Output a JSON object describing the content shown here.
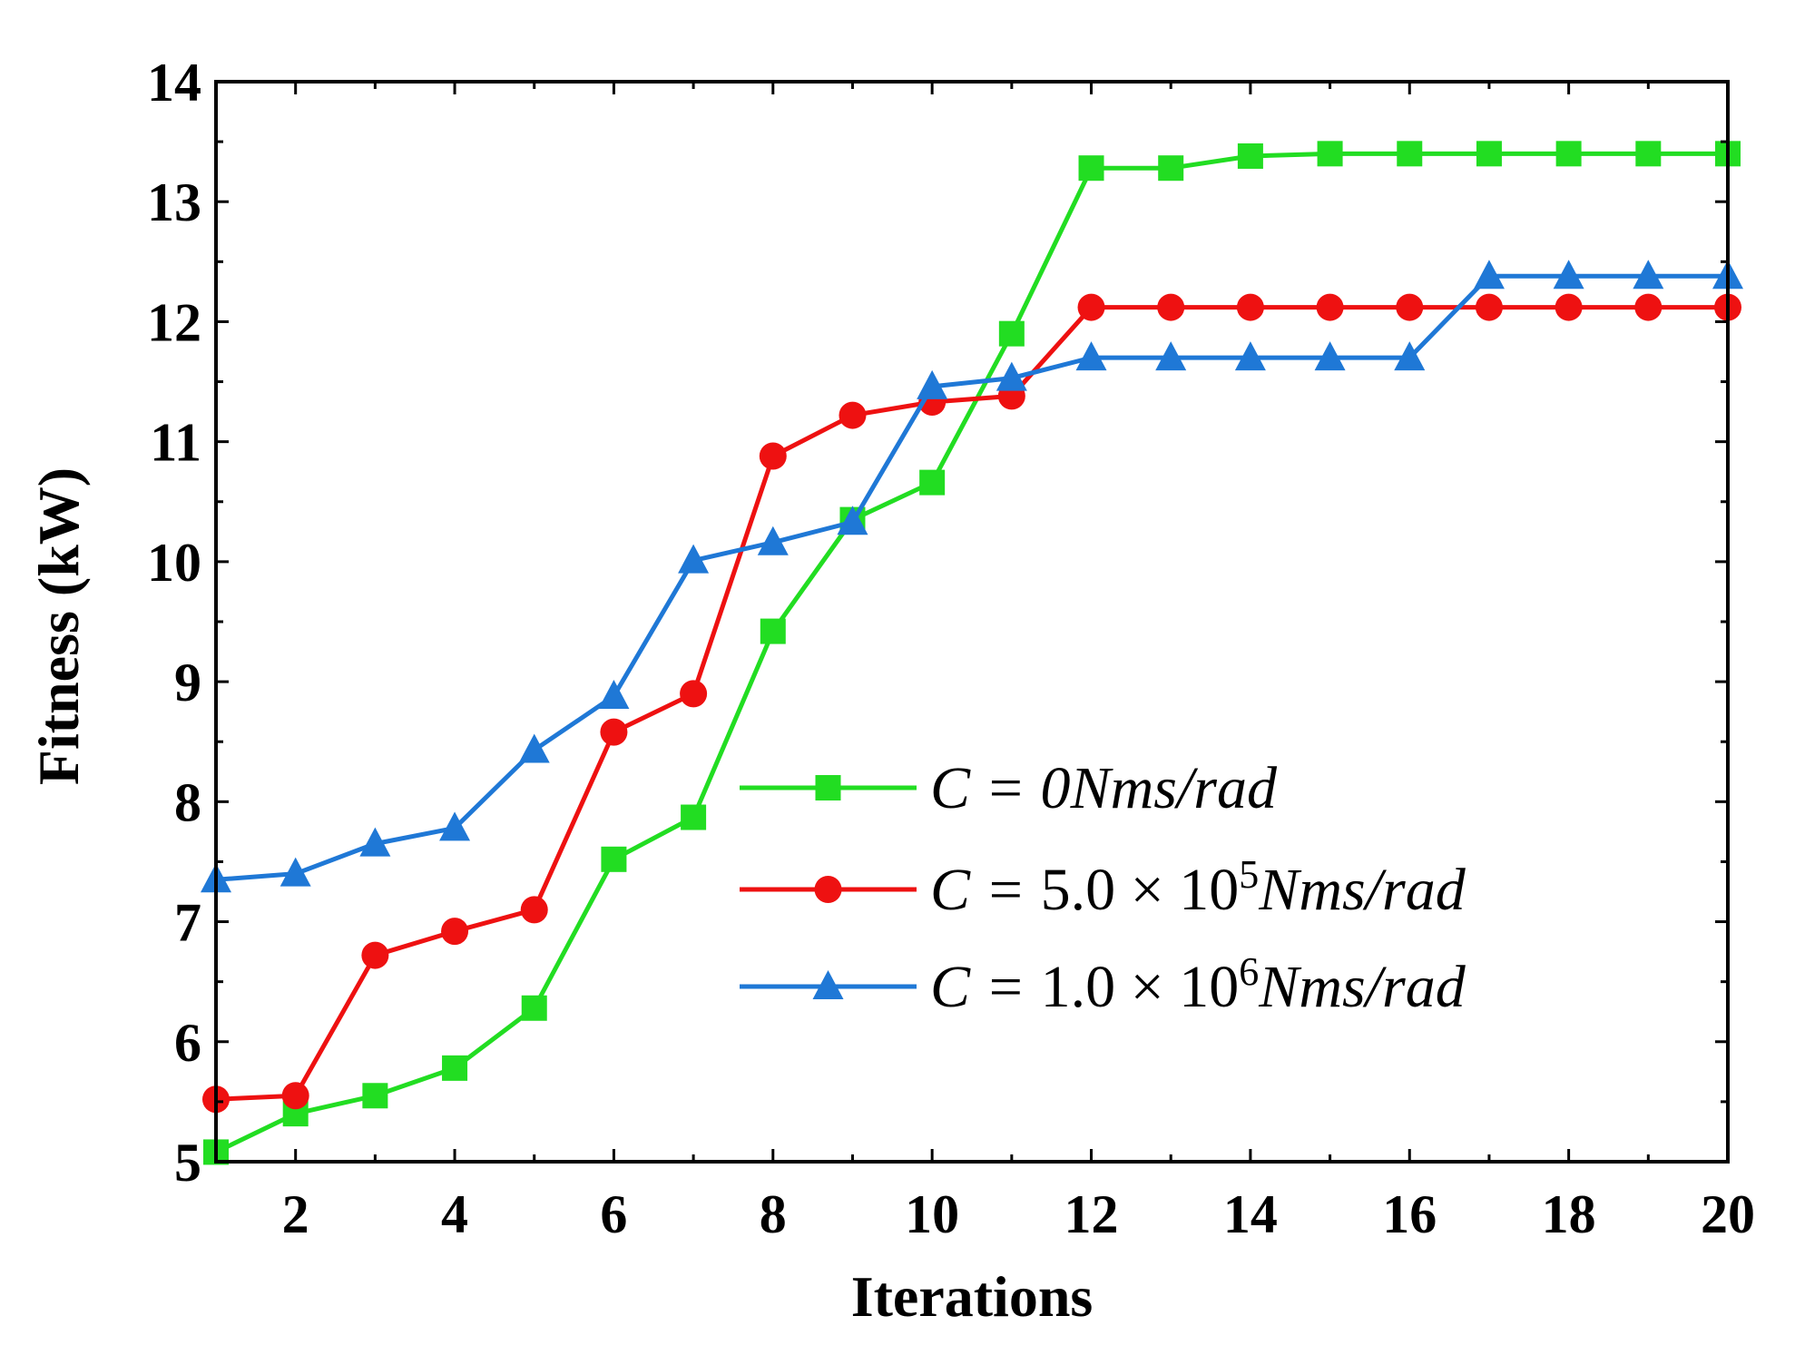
{
  "chart_data": {
    "type": "line",
    "title": "",
    "xlabel": "Iterations",
    "ylabel": "Fitness (kW)",
    "xlim": [
      1,
      20
    ],
    "ylim": [
      5,
      14
    ],
    "xticks": [
      2,
      4,
      6,
      8,
      10,
      12,
      14,
      16,
      18,
      20
    ],
    "yticks": [
      5,
      6,
      7,
      8,
      9,
      10,
      11,
      12,
      13,
      14
    ],
    "grid": false,
    "legend_position": "center-right",
    "x": [
      1,
      2,
      3,
      4,
      5,
      6,
      7,
      8,
      9,
      10,
      11,
      12,
      13,
      14,
      15,
      16,
      17,
      18,
      19,
      20
    ],
    "series": [
      {
        "name": "C = 0Nms/rad",
        "legend_parts": {
          "prefix": "C = 0",
          "mantissa": "",
          "exponent": "",
          "unit": "Nms/rad"
        },
        "color": "#22dd22",
        "marker": "square",
        "values": [
          5.08,
          5.4,
          5.55,
          5.78,
          6.28,
          7.52,
          7.87,
          9.42,
          10.35,
          10.66,
          11.9,
          13.28,
          13.28,
          13.38,
          13.4,
          13.4,
          13.4,
          13.4,
          13.4,
          13.4
        ]
      },
      {
        "name": "C = 5.0 × 10^5 Nms/rad",
        "legend_parts": {
          "prefix": "C = ",
          "mantissa": "5.0 × 10",
          "exponent": "5",
          "unit": "Nms/rad"
        },
        "color": "#ee1111",
        "marker": "circle",
        "values": [
          5.52,
          5.55,
          6.72,
          6.92,
          7.1,
          8.58,
          8.9,
          10.88,
          11.22,
          11.33,
          11.38,
          12.12,
          12.12,
          12.12,
          12.12,
          12.12,
          12.12,
          12.12,
          12.12,
          12.12
        ]
      },
      {
        "name": "C = 1.0 × 10^6 Nms/rad",
        "legend_parts": {
          "prefix": "C = ",
          "mantissa": "1.0 × 10",
          "exponent": "6",
          "unit": "Nms/rad"
        },
        "color": "#1f78d6",
        "marker": "triangle",
        "values": [
          7.35,
          7.4,
          7.65,
          7.78,
          8.43,
          8.88,
          10.01,
          10.16,
          10.33,
          11.46,
          11.53,
          11.7,
          11.7,
          11.7,
          11.7,
          11.7,
          12.38,
          12.38,
          12.38,
          12.38
        ]
      }
    ]
  }
}
